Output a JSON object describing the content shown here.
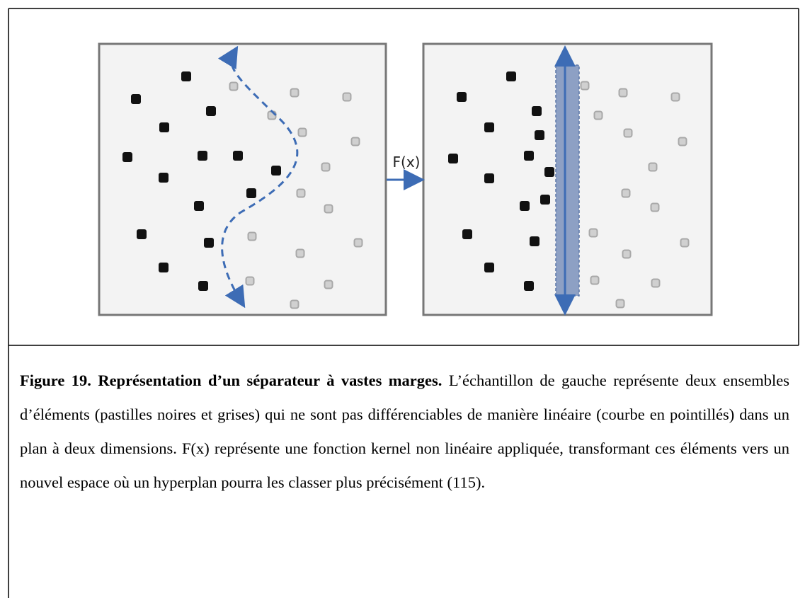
{
  "figure": {
    "transform_label": "F(x)"
  },
  "caption": {
    "title": "Figure 19. Représentation d’un séparateur à vastes marges.",
    "text": "L’échantillon de gauche représente deux ensembles d’éléments (pastilles noires et grises) qui ne sont pas différenciables de manière linéaire (courbe en pointillés) dans un plan à deux dimensions. F(x) représente une fonction kernel non linéaire appliquée, transformant ces éléments vers un nouvel espace où un hyperplan pourra les classer plus précisément (115)."
  }
}
